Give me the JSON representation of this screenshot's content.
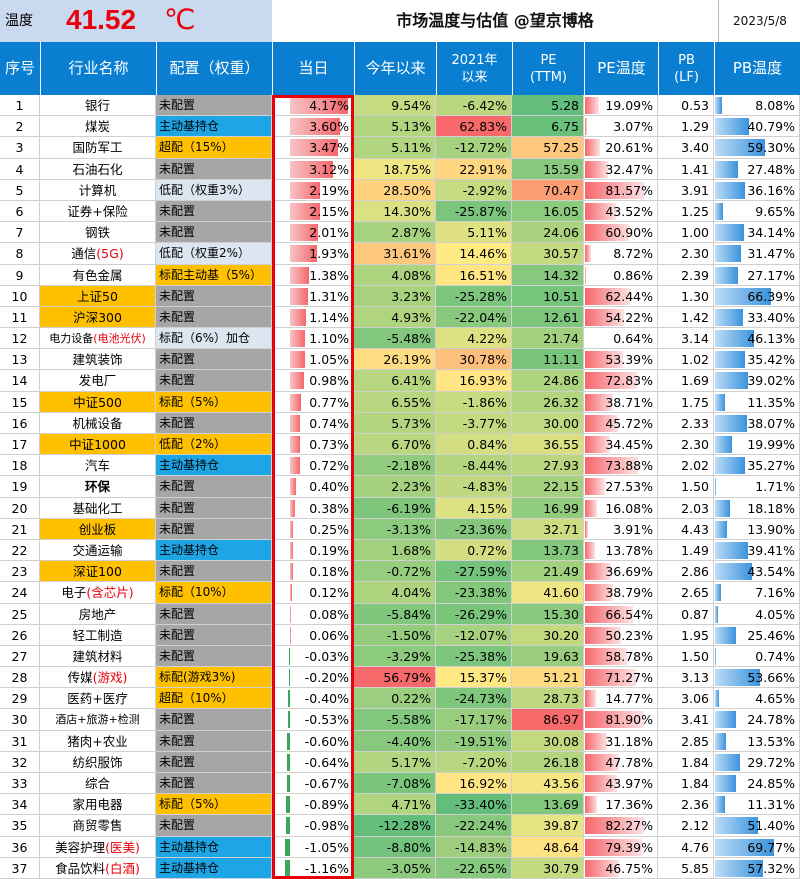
{
  "topbar": {
    "temp_label": "温度",
    "temp_value": "41.52",
    "temp_unit": "℃",
    "title": "市场温度与估值 @望京博格",
    "date": "2023/5/8"
  },
  "headers": [
    "序号",
    "行业名称",
    "配置（权重）",
    "当日",
    "今年以来",
    "2021年\n以来",
    "PE\n(TTM)",
    "PE温度",
    "PB\n(LF)",
    "PB温度"
  ],
  "colors": {
    "header_bg": "#0a7fd1",
    "blue_cfg": "#1ea5e6",
    "orange_cfg": "#ffc000",
    "gray_cfg": "#a6a6a6",
    "light_cfg": "#dce6f1",
    "name_orange": "#ffc000",
    "red_text": "#e8000b"
  },
  "rows": [
    {
      "idx": "1",
      "name": "银行",
      "cfg": "未配置",
      "cfg_style": "gray",
      "day": "4.17%",
      "ytd": "9.54%",
      "s21": "-6.42%",
      "pe": "5.28",
      "pet": "19.09%",
      "pb": "0.53",
      "pbt": "8.08%"
    },
    {
      "idx": "2",
      "name": "煤炭",
      "cfg": "主动基持仓",
      "cfg_style": "blue",
      "day": "3.60%",
      "ytd": "5.13%",
      "s21": "62.83%",
      "pe": "6.75",
      "pet": "3.07%",
      "pb": "1.29",
      "pbt": "40.79%"
    },
    {
      "idx": "3",
      "name": "国防军工",
      "cfg": "超配（15%）",
      "cfg_style": "orange",
      "day": "3.47%",
      "ytd": "5.11%",
      "s21": "-12.72%",
      "pe": "57.25",
      "pet": "20.61%",
      "pb": "3.40",
      "pbt": "59.30%"
    },
    {
      "idx": "4",
      "name": "石油石化",
      "cfg": "未配置",
      "cfg_style": "gray",
      "day": "3.12%",
      "ytd": "18.75%",
      "s21": "22.91%",
      "pe": "15.59",
      "pet": "32.47%",
      "pb": "1.41",
      "pbt": "27.48%"
    },
    {
      "idx": "5",
      "name": "计算机",
      "cfg": "低配（权重3%）",
      "cfg_style": "light",
      "day": "2.19%",
      "ytd": "28.50%",
      "s21": "-2.92%",
      "pe": "70.47",
      "pet": "81.57%",
      "pb": "3.91",
      "pbt": "36.16%"
    },
    {
      "idx": "6",
      "name": "证券+保险",
      "cfg": "未配置",
      "cfg_style": "gray",
      "day": "2.15%",
      "ytd": "14.30%",
      "s21": "-25.87%",
      "pe": "16.05",
      "pet": "43.52%",
      "pb": "1.25",
      "pbt": "9.65%"
    },
    {
      "idx": "7",
      "name": "钢铁",
      "cfg": "未配置",
      "cfg_style": "gray",
      "day": "2.01%",
      "ytd": "2.87%",
      "s21": "5.11%",
      "pe": "24.06",
      "pet": "60.90%",
      "pb": "1.00",
      "pbt": "34.14%"
    },
    {
      "idx": "8",
      "name": "通信",
      "name_red": "(5G)",
      "cfg": "低配（权重2%）",
      "cfg_style": "light",
      "day": "1.93%",
      "ytd": "31.61%",
      "s21": "14.46%",
      "pe": "30.57",
      "pet": "8.72%",
      "pb": "2.30",
      "pbt": "31.47%"
    },
    {
      "idx": "9",
      "name": "有色金属",
      "cfg": "标配主动基（5%）",
      "cfg_style": "orange",
      "day": "1.38%",
      "ytd": "4.08%",
      "s21": "16.51%",
      "pe": "14.32",
      "pet": "0.86%",
      "pb": "2.39",
      "pbt": "27.17%"
    },
    {
      "idx": "10",
      "name": "上证50",
      "name_style": "orange",
      "cfg": "未配置",
      "cfg_style": "gray",
      "day": "1.31%",
      "ytd": "3.23%",
      "s21": "-25.28%",
      "pe": "10.51",
      "pet": "62.44%",
      "pb": "1.30",
      "pbt": "66.39%"
    },
    {
      "idx": "11",
      "name": "沪深300",
      "name_style": "orange",
      "cfg": "未配置",
      "cfg_style": "gray",
      "day": "1.14%",
      "ytd": "4.93%",
      "s21": "-22.04%",
      "pe": "12.61",
      "pet": "54.22%",
      "pb": "1.42",
      "pbt": "33.40%"
    },
    {
      "idx": "12",
      "name": "电力设备",
      "name_red": "(电池光伏)",
      "name_small": true,
      "cfg": "标配（6%）加仓",
      "cfg_style": "light",
      "day": "1.10%",
      "ytd": "-5.48%",
      "s21": "4.22%",
      "pe": "21.74",
      "pet": "0.64%",
      "pb": "3.14",
      "pbt": "46.13%"
    },
    {
      "idx": "13",
      "name": "建筑装饰",
      "cfg": "未配置",
      "cfg_style": "gray",
      "day": "1.05%",
      "ytd": "26.19%",
      "s21": "30.78%",
      "pe": "11.11",
      "pet": "53.39%",
      "pb": "1.02",
      "pbt": "35.42%"
    },
    {
      "idx": "14",
      "name": "发电厂",
      "cfg": "未配置",
      "cfg_style": "gray",
      "day": "0.98%",
      "ytd": "6.41%",
      "s21": "16.93%",
      "pe": "24.86",
      "pet": "72.83%",
      "pb": "1.69",
      "pbt": "39.02%"
    },
    {
      "idx": "15",
      "name": "中证500",
      "name_style": "orange",
      "cfg": "标配（5%）",
      "cfg_style": "orange",
      "day": "0.77%",
      "ytd": "6.55%",
      "s21": "-1.86%",
      "pe": "26.32",
      "pet": "38.71%",
      "pb": "1.75",
      "pbt": "11.35%"
    },
    {
      "idx": "16",
      "name": "机械设备",
      "cfg": "未配置",
      "cfg_style": "gray",
      "day": "0.74%",
      "ytd": "5.73%",
      "s21": "-3.77%",
      "pe": "30.00",
      "pet": "45.72%",
      "pb": "2.33",
      "pbt": "38.07%"
    },
    {
      "idx": "17",
      "name": "中证1000",
      "name_style": "orange",
      "cfg": "低配（2%）",
      "cfg_style": "orange",
      "day": "0.73%",
      "ytd": "6.70%",
      "s21": "0.84%",
      "pe": "36.55",
      "pet": "34.45%",
      "pb": "2.30",
      "pbt": "19.99%"
    },
    {
      "idx": "18",
      "name": "汽车",
      "cfg": "主动基持仓",
      "cfg_style": "blue",
      "day": "0.72%",
      "ytd": "-2.18%",
      "s21": "-8.44%",
      "pe": "27.93",
      "pet": "73.88%",
      "pb": "2.02",
      "pbt": "35.27%"
    },
    {
      "idx": "19",
      "name": "环保",
      "name_bold": true,
      "cfg": "未配置",
      "cfg_style": "gray",
      "day": "0.40%",
      "ytd": "2.23%",
      "s21": "-4.83%",
      "pe": "22.15",
      "pet": "27.53%",
      "pb": "1.50",
      "pbt": "1.71%"
    },
    {
      "idx": "20",
      "name": "基础化工",
      "cfg": "未配置",
      "cfg_style": "gray",
      "day": "0.38%",
      "ytd": "-6.19%",
      "s21": "4.15%",
      "pe": "16.99",
      "pet": "16.08%",
      "pb": "2.03",
      "pbt": "18.18%"
    },
    {
      "idx": "21",
      "name": "创业板",
      "name_style": "orange",
      "cfg": "未配置",
      "cfg_style": "gray",
      "day": "0.25%",
      "ytd": "-3.13%",
      "s21": "-23.36%",
      "pe": "32.71",
      "pet": "3.91%",
      "pb": "4.43",
      "pbt": "13.90%"
    },
    {
      "idx": "22",
      "name": "交通运输",
      "cfg": "主动基持仓",
      "cfg_style": "blue",
      "day": "0.19%",
      "ytd": "1.68%",
      "s21": "0.72%",
      "pe": "13.73",
      "pet": "13.78%",
      "pb": "1.49",
      "pbt": "39.41%"
    },
    {
      "idx": "23",
      "name": "深证100",
      "name_style": "orange",
      "cfg": "未配置",
      "cfg_style": "gray",
      "day": "0.18%",
      "ytd": "-0.72%",
      "s21": "-27.59%",
      "pe": "21.49",
      "pet": "36.69%",
      "pb": "2.86",
      "pbt": "43.54%"
    },
    {
      "idx": "24",
      "name": "电子",
      "name_red": "(含芯片)",
      "cfg": "标配（10%）",
      "cfg_style": "orange",
      "day": "0.12%",
      "ytd": "4.04%",
      "s21": "-23.38%",
      "pe": "41.60",
      "pet": "38.79%",
      "pb": "2.65",
      "pbt": "7.16%"
    },
    {
      "idx": "25",
      "name": "房地产",
      "cfg": "未配置",
      "cfg_style": "gray",
      "day": "0.08%",
      "ytd": "-5.84%",
      "s21": "-26.29%",
      "pe": "15.30",
      "pet": "66.54%",
      "pb": "0.87",
      "pbt": "4.05%"
    },
    {
      "idx": "26",
      "name": "轻工制造",
      "cfg": "未配置",
      "cfg_style": "gray",
      "day": "0.06%",
      "ytd": "-1.50%",
      "s21": "-12.07%",
      "pe": "30.20",
      "pet": "50.23%",
      "pb": "1.95",
      "pbt": "25.46%"
    },
    {
      "idx": "27",
      "name": "建筑材料",
      "cfg": "未配置",
      "cfg_style": "gray",
      "day": "-0.03%",
      "ytd": "-3.29%",
      "s21": "-25.38%",
      "pe": "19.63",
      "pet": "58.78%",
      "pb": "1.50",
      "pbt": "0.74%"
    },
    {
      "idx": "28",
      "name": "传媒",
      "name_red": "(游戏)",
      "cfg": "标配(游戏3%)",
      "cfg_style": "orange",
      "day": "-0.20%",
      "ytd": "56.79%",
      "s21": "15.37%",
      "pe": "51.21",
      "pet": "71.27%",
      "pb": "3.13",
      "pbt": "53.66%"
    },
    {
      "idx": "29",
      "name": "医药+医疗",
      "cfg": "超配（10%）",
      "cfg_style": "orange",
      "day": "-0.40%",
      "ytd": "0.22%",
      "s21": "-24.73%",
      "pe": "28.73",
      "pet": "14.77%",
      "pb": "3.06",
      "pbt": "4.65%"
    },
    {
      "idx": "30",
      "name": "酒店+旅游+检测",
      "name_small": true,
      "cfg": "未配置",
      "cfg_style": "gray",
      "day": "-0.53%",
      "ytd": "-5.58%",
      "s21": "-17.17%",
      "pe": "86.97",
      "pet": "81.90%",
      "pb": "3.41",
      "pbt": "24.78%"
    },
    {
      "idx": "31",
      "name": "猪肉+农业",
      "cfg": "未配置",
      "cfg_style": "gray",
      "day": "-0.60%",
      "ytd": "-4.40%",
      "s21": "-19.51%",
      "pe": "30.08",
      "pet": "31.18%",
      "pb": "2.85",
      "pbt": "13.53%"
    },
    {
      "idx": "32",
      "name": "纺织服饰",
      "cfg": "未配置",
      "cfg_style": "gray",
      "day": "-0.64%",
      "ytd": "5.17%",
      "s21": "-7.20%",
      "pe": "26.18",
      "pet": "47.78%",
      "pb": "1.84",
      "pbt": "29.72%"
    },
    {
      "idx": "33",
      "name": "综合",
      "cfg": "未配置",
      "cfg_style": "gray",
      "day": "-0.67%",
      "ytd": "-7.08%",
      "s21": "16.92%",
      "pe": "43.56",
      "pet": "43.97%",
      "pb": "1.84",
      "pbt": "24.85%"
    },
    {
      "idx": "34",
      "name": "家用电器",
      "cfg": "标配（5%）",
      "cfg_style": "orange",
      "day": "-0.89%",
      "ytd": "4.71%",
      "s21": "-33.40%",
      "pe": "13.69",
      "pet": "17.36%",
      "pb": "2.36",
      "pbt": "11.31%"
    },
    {
      "idx": "35",
      "name": "商贸零售",
      "cfg": "未配置",
      "cfg_style": "gray",
      "day": "-0.98%",
      "ytd": "-12.28%",
      "s21": "-22.24%",
      "pe": "39.87",
      "pet": "82.27%",
      "pb": "2.12",
      "pbt": "51.40%"
    },
    {
      "idx": "36",
      "name": "美容护理",
      "name_red": "(医美)",
      "cfg": "主动基持仓",
      "cfg_style": "blue",
      "day": "-1.05%",
      "ytd": "-8.80%",
      "s21": "-14.83%",
      "pe": "48.64",
      "pet": "79.39%",
      "pb": "4.76",
      "pbt": "69.77%"
    },
    {
      "idx": "37",
      "name": "食品饮料",
      "name_red": "(白酒)",
      "cfg": "主动基持仓",
      "cfg_style": "blue",
      "day": "-1.16%",
      "ytd": "-3.05%",
      "s21": "-22.65%",
      "pe": "30.79",
      "pet": "46.75%",
      "pb": "5.85",
      "pbt": "57.32%"
    }
  ]
}
